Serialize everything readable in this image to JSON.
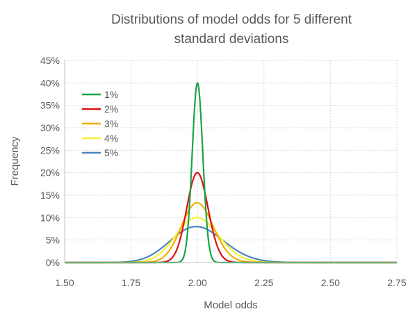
{
  "chart_data": {
    "type": "line",
    "title": "Distributions of model odds for 5 different standard deviations",
    "title_lines": [
      "Distributions of model odds for 5 different",
      "standard deviations"
    ],
    "xlabel": "Model odds",
    "ylabel": "Frequency",
    "xlim": [
      1.5,
      2.75
    ],
    "ylim": [
      0,
      45
    ],
    "xticks": [
      1.5,
      1.75,
      2.0,
      2.25,
      2.5,
      2.75
    ],
    "xtick_labels": [
      "1.50",
      "1.75",
      "2.00",
      "2.25",
      "2.50",
      "2.75"
    ],
    "yticks": [
      0,
      5,
      10,
      15,
      20,
      25,
      30,
      35,
      40,
      45
    ],
    "ytick_labels": [
      "0%",
      "5%",
      "10%",
      "15%",
      "20%",
      "25%",
      "30%",
      "35%",
      "40%",
      "45%"
    ],
    "grid": true,
    "legend_position": "top-left",
    "series": [
      {
        "name": "1%",
        "color": "#1aa34a",
        "mean": 2.0,
        "sd_log": 0.01,
        "peak": 40
      },
      {
        "name": "2%",
        "color": "#e01010",
        "mean": 2.0,
        "sd_log": 0.02,
        "peak": 20
      },
      {
        "name": "3%",
        "color": "#f2b000",
        "mean": 2.0,
        "sd_log": 0.03,
        "peak": 13.3
      },
      {
        "name": "4%",
        "color": "#f6f032",
        "mean": 2.0,
        "sd_log": 0.04,
        "peak": 10
      },
      {
        "name": "5%",
        "color": "#4a86c4",
        "mean": 2.0,
        "sd_log": 0.05,
        "peak": 8
      }
    ]
  }
}
